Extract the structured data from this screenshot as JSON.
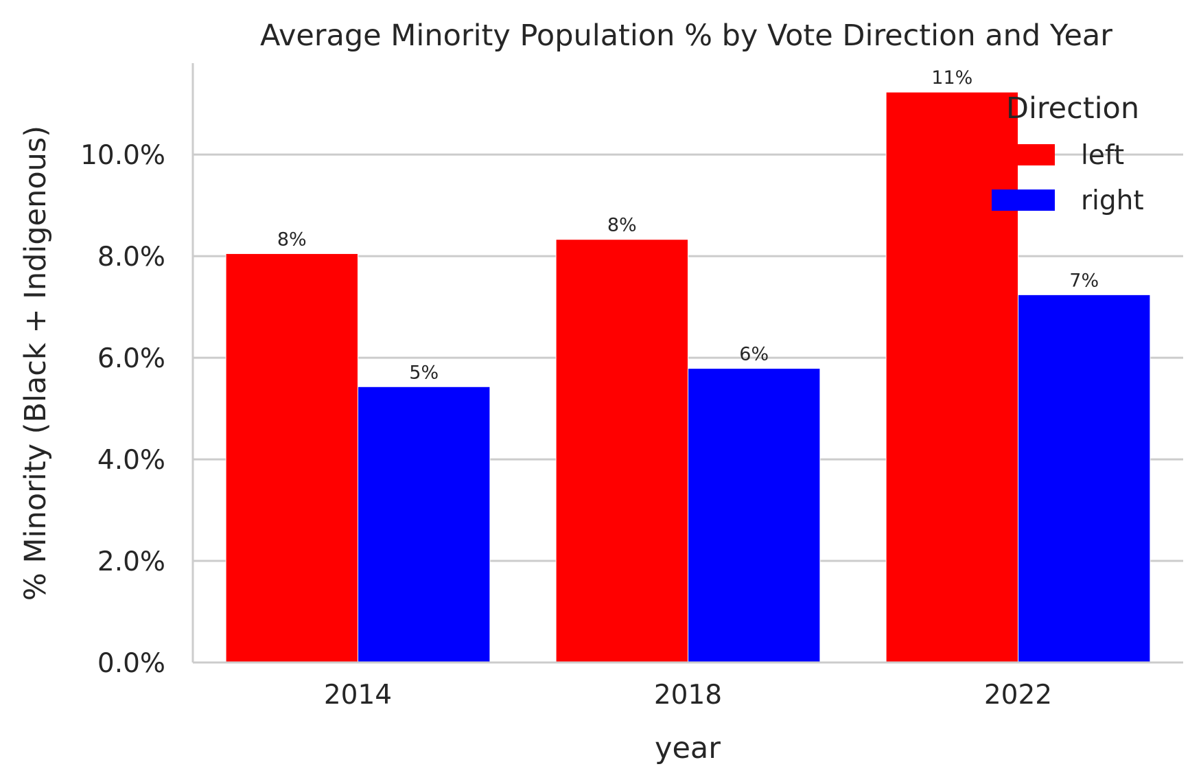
{
  "chart_data": {
    "type": "bar",
    "title": "Average Minority Population % by Vote Direction and Year",
    "xlabel": "year",
    "ylabel": "% Minority (Black + Indigenous)",
    "categories": [
      "2014",
      "2018",
      "2022"
    ],
    "series": [
      {
        "name": "left",
        "color": "#ff0000",
        "values": [
          8.05,
          8.33,
          11.23
        ],
        "labels": [
          "8%",
          "8%",
          "11%"
        ]
      },
      {
        "name": "right",
        "color": "#0000ff",
        "values": [
          5.43,
          5.79,
          7.24
        ],
        "labels": [
          "5%",
          "6%",
          "7%"
        ]
      }
    ],
    "ylim": [
      0,
      11.8
    ],
    "yticks": [
      0,
      2,
      4,
      6,
      8,
      10
    ],
    "ytick_labels": [
      "0.0%",
      "2.0%",
      "4.0%",
      "6.0%",
      "8.0%",
      "10.0%"
    ],
    "legend": {
      "title": "Direction",
      "position": "top-right"
    },
    "grid": "horizontal",
    "colors": {
      "grid": "#cccccc",
      "axis": "#cccccc",
      "text": "#262626"
    }
  }
}
